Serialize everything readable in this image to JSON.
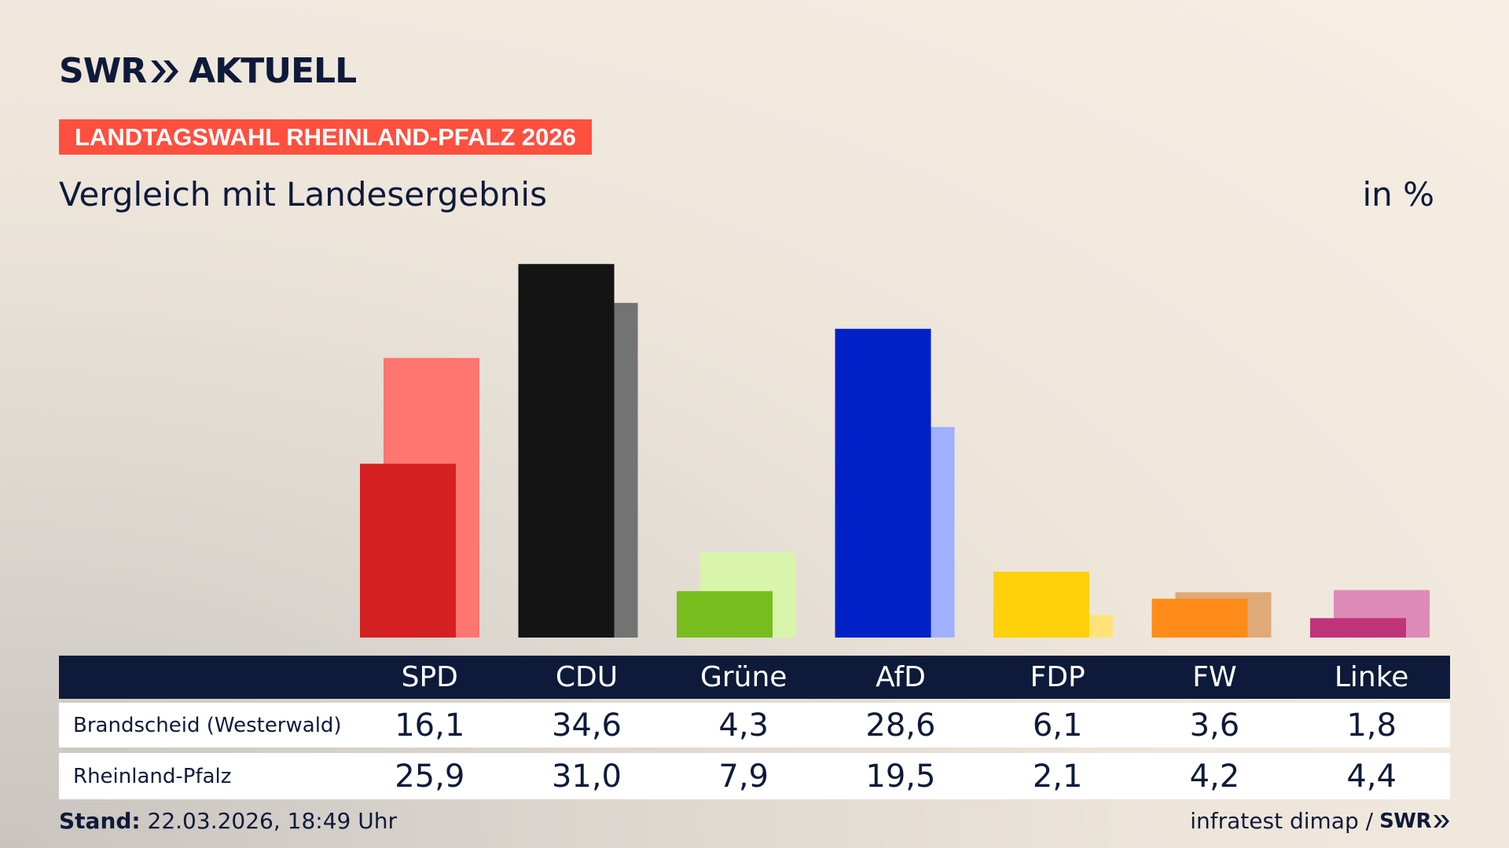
{
  "header": {
    "logo_text_left": "SWR",
    "logo_text_right": "AKTUELL",
    "tag": "LANDTAGSWAHL RHEINLAND-PFALZ 2026",
    "subtitle": "Vergleich mit Landesergebnis",
    "unit": "in %"
  },
  "chart_data": {
    "type": "bar",
    "title": "Vergleich mit Landesergebnis",
    "unit": "in %",
    "categories": [
      "SPD",
      "CDU",
      "Grüne",
      "AfD",
      "FDP",
      "FW",
      "Linke"
    ],
    "series": [
      {
        "name": "Brandscheid (Westerwald)",
        "values": [
          16.1,
          34.6,
          4.3,
          28.6,
          6.1,
          3.6,
          1.8
        ],
        "display": [
          "16,1",
          "34,6",
          "4,3",
          "28,6",
          "6,1",
          "3,6",
          "1,8"
        ]
      },
      {
        "name": "Rheinland-Pfalz",
        "values": [
          25.9,
          31.0,
          7.9,
          19.5,
          2.1,
          4.2,
          4.4
        ],
        "display": [
          "25,9",
          "31,0",
          "7,9",
          "19,5",
          "2,1",
          "4,2",
          "4,4"
        ]
      }
    ],
    "colors_primary": [
      "#d42020",
      "#141414",
      "#77bd1e",
      "#0021c8",
      "#ffd10a",
      "#ff8b1a",
      "#bf3379"
    ],
    "colors_secondary": [
      "#ff7570",
      "#737373",
      "#d8f5ab",
      "#9fb0ff",
      "#ffe37a",
      "#dfaa78",
      "#de8ab8"
    ],
    "ylim": [
      0,
      36
    ],
    "legend": "table-below"
  },
  "footer": {
    "stand_label": "Stand:",
    "stand_value": "22.03.2026, 18:49 Uhr",
    "source": "infratest dimap /",
    "source_logo": "SWR"
  }
}
